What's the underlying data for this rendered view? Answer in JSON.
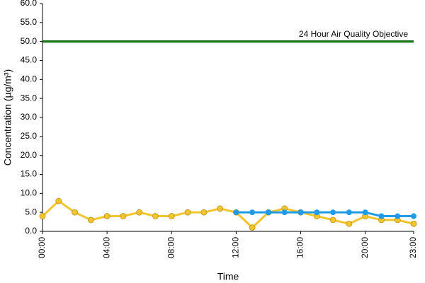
{
  "chart_data": {
    "type": "line",
    "y_label": "Concentration (µg/m³)",
    "x_label": "Time",
    "categories": [
      "00:00",
      null,
      null,
      null,
      "04:00",
      null,
      null,
      null,
      "08:00",
      null,
      null,
      null,
      "12:00",
      null,
      null,
      null,
      "16:00",
      null,
      null,
      null,
      "20:00",
      null,
      null,
      "23:00"
    ],
    "series": [
      {
        "color": "#f2c52e",
        "values": [
          4,
          8,
          5,
          3,
          4,
          4,
          5,
          4,
          4,
          5,
          5,
          6,
          5,
          1,
          5,
          6,
          5,
          4,
          3,
          2,
          4,
          3,
          3,
          2
        ]
      },
      {
        "color": "#1f9be8",
        "values": [
          null,
          null,
          null,
          null,
          null,
          null,
          null,
          null,
          null,
          null,
          null,
          null,
          5,
          5,
          5,
          5,
          5,
          5,
          5,
          5,
          5,
          4,
          4,
          4
        ]
      }
    ],
    "reference_line": {
      "value": 50,
      "label": "24 Hour Air Quality Objective",
      "color": "#1f7a1f"
    },
    "ylim": [
      0,
      60
    ],
    "yticks": [
      {
        "value": 0,
        "label": "0.0"
      },
      {
        "value": 5,
        "label": "5.0"
      },
      {
        "value": 10,
        "label": "10.0"
      },
      {
        "value": 15,
        "label": "15.0"
      },
      {
        "value": 20,
        "label": "20.0"
      },
      {
        "value": 25,
        "label": "25.0"
      },
      {
        "value": 30,
        "label": "30.0"
      },
      {
        "value": 35,
        "label": "35.0"
      },
      {
        "value": 40,
        "label": "40.0"
      },
      {
        "value": 45,
        "label": "45.0"
      },
      {
        "value": 50,
        "label": "50.0"
      },
      {
        "value": 55,
        "label": "55.0"
      },
      {
        "value": 60,
        "label": "60.0"
      }
    ]
  }
}
